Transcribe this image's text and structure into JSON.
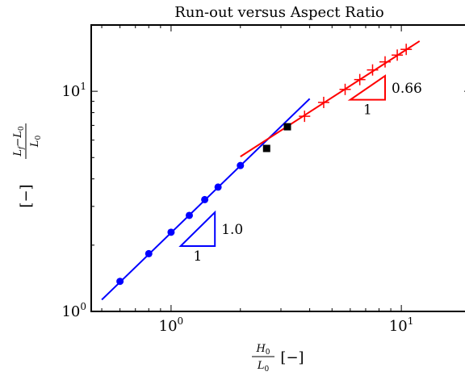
{
  "chart_data": {
    "type": "scatter",
    "title": "Run-out versus Aspect Ratio",
    "x_scale": "log",
    "y_scale": "log",
    "xlim": [
      0.45,
      20
    ],
    "ylim": [
      1,
      20
    ],
    "xlabel": {
      "numerator": "H",
      "numerator_sub": "0",
      "denominator": "L",
      "denominator_sub": "0",
      "unit": "[−]"
    },
    "ylabel": {
      "numerator_a": "L",
      "numerator_a_sub": "f",
      "numerator_op": "−L",
      "numerator_b_sub": "0",
      "denominator": "L",
      "denominator_sub": "0",
      "unit": "[−]"
    },
    "x_ticks": [
      {
        "value": 1,
        "base": "10",
        "exp": "0"
      },
      {
        "value": 10,
        "base": "10",
        "exp": "1"
      }
    ],
    "y_ticks": [
      {
        "value": 1,
        "base": "10",
        "exp": "0"
      },
      {
        "value": 10,
        "base": "10",
        "exp": "1"
      }
    ],
    "grid": false,
    "series": [
      {
        "marker": "circle",
        "color": "#0000ff",
        "points": [
          {
            "x": 0.6,
            "y": 1.37
          },
          {
            "x": 0.8,
            "y": 1.83
          },
          {
            "x": 1.0,
            "y": 2.29
          },
          {
            "x": 1.2,
            "y": 2.73
          },
          {
            "x": 1.4,
            "y": 3.22
          },
          {
            "x": 1.6,
            "y": 3.67
          },
          {
            "x": 2.0,
            "y": 4.6
          }
        ]
      },
      {
        "marker": "square",
        "color": "#000000",
        "points": [
          {
            "x": 2.6,
            "y": 5.5
          },
          {
            "x": 3.2,
            "y": 6.9
          }
        ]
      },
      {
        "marker": "plus",
        "color": "#ff0000",
        "points": [
          {
            "x": 3.8,
            "y": 7.7
          },
          {
            "x": 4.6,
            "y": 8.9
          },
          {
            "x": 5.7,
            "y": 10.2
          },
          {
            "x": 6.6,
            "y": 11.3
          },
          {
            "x": 7.5,
            "y": 12.5
          },
          {
            "x": 8.5,
            "y": 13.6
          },
          {
            "x": 9.6,
            "y": 14.6
          },
          {
            "x": 10.5,
            "y": 15.5
          }
        ]
      }
    ],
    "fit_lines": [
      {
        "color": "#0000ff",
        "from": {
          "x": 0.5,
          "y": 1.13
        },
        "to": {
          "x": 4.0,
          "y": 9.25
        }
      },
      {
        "color": "#ff0000",
        "from": {
          "x": 2.0,
          "y": 5.05
        },
        "to": {
          "x": 12.0,
          "y": 16.9
        }
      }
    ],
    "slope_annotations": [
      {
        "color": "#0000ff",
        "x1": 1.1,
        "x2": 1.55,
        "y1": 1.98,
        "y2": 2.82,
        "run_label": "1",
        "rise_label": "1.0"
      },
      {
        "color": "#ff0000",
        "x1": 6.0,
        "x2": 8.5,
        "y1": 9.15,
        "y2": 11.75,
        "run_label": "1",
        "rise_label": "0.66"
      }
    ]
  }
}
